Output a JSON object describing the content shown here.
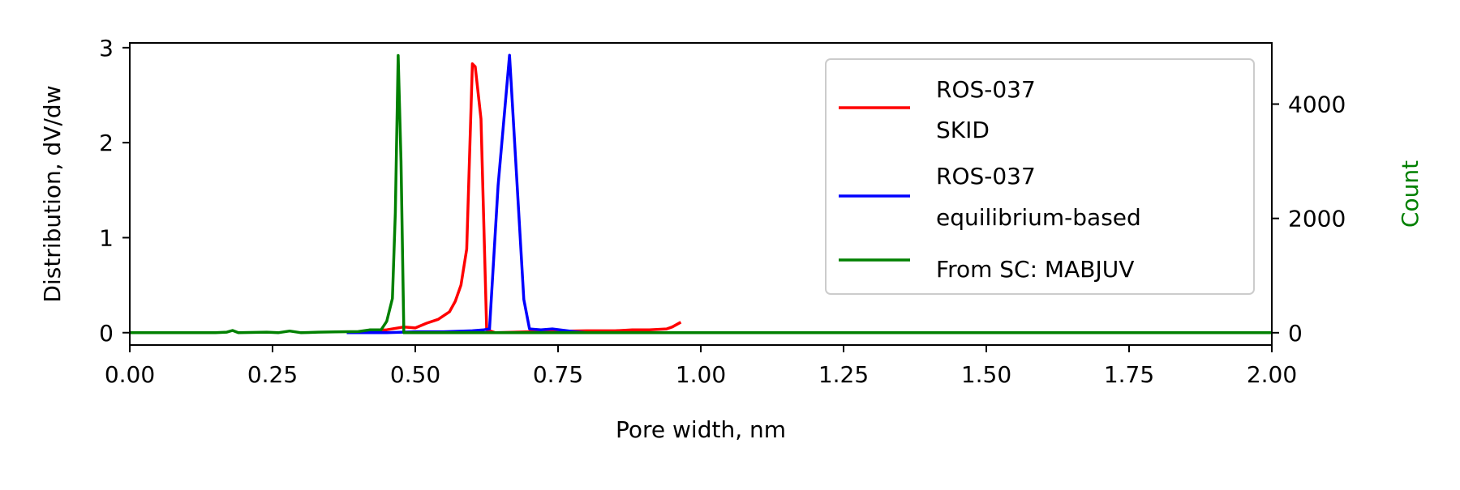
{
  "chart_data": {
    "type": "line",
    "xlabel": "Pore width, nm",
    "ylabel": "Distribution, dV/dw",
    "y2label": "Count",
    "xlim": [
      0,
      2
    ],
    "ylim": [
      -0.13,
      3.05
    ],
    "y2lim": [
      -215,
      5070
    ],
    "xticks": [
      0,
      0.25,
      0.5,
      0.75,
      1.0,
      1.25,
      1.5,
      1.75,
      2.0
    ],
    "xtick_labels": [
      "0.00",
      "0.25",
      "0.50",
      "0.75",
      "1.00",
      "1.25",
      "1.50",
      "1.75",
      "2.00"
    ],
    "yticks": [
      0,
      1,
      2,
      3
    ],
    "ytick_labels": [
      "0",
      "1",
      "2",
      "3"
    ],
    "y2ticks": [
      0,
      2000,
      4000
    ],
    "y2tick_labels": [
      "0",
      "2000",
      "4000"
    ],
    "legend_position": "top-right",
    "colors": {
      "red": "#ff0000",
      "blue": "#0000ff",
      "green": "#008000",
      "count_label": "#008000"
    },
    "series": [
      {
        "name": "ROS-037\nSKID",
        "axis": "left",
        "color": "#ff0000",
        "x": [
          0.4,
          0.45,
          0.48,
          0.5,
          0.52,
          0.54,
          0.56,
          0.57,
          0.58,
          0.59,
          0.6,
          0.605,
          0.615,
          0.625,
          0.64,
          0.7,
          0.8,
          0.85,
          0.88,
          0.91,
          0.94,
          0.95,
          0.965
        ],
        "y": [
          0.01,
          0.03,
          0.06,
          0.05,
          0.1,
          0.14,
          0.22,
          0.33,
          0.5,
          0.88,
          2.83,
          2.8,
          2.25,
          0.03,
          0.0,
          0.01,
          0.02,
          0.02,
          0.03,
          0.03,
          0.04,
          0.06,
          0.11
        ]
      },
      {
        "name": "ROS-037\nequilibrium-based",
        "axis": "left",
        "color": "#0000ff",
        "x": [
          0.38,
          0.45,
          0.5,
          0.55,
          0.6,
          0.62,
          0.63,
          0.645,
          0.665,
          0.69,
          0.7,
          0.72,
          0.74,
          0.78,
          0.8
        ],
        "y": [
          0.0,
          0.0,
          0.01,
          0.01,
          0.02,
          0.03,
          0.04,
          1.55,
          2.92,
          0.35,
          0.04,
          0.03,
          0.04,
          0.01,
          0.0
        ],
        "line_end_x": 0.8
      },
      {
        "name": "From SC: MABJUV",
        "axis": "right",
        "color": "#008000",
        "x": [
          0.0,
          0.15,
          0.17,
          0.18,
          0.19,
          0.24,
          0.26,
          0.28,
          0.3,
          0.33,
          0.36,
          0.4,
          0.42,
          0.44,
          0.45,
          0.46,
          0.465,
          0.47,
          0.475,
          0.48,
          0.49,
          2.0
        ],
        "y": [
          0,
          0,
          10,
          40,
          0,
          10,
          0,
          30,
          0,
          10,
          15,
          20,
          50,
          50,
          200,
          600,
          2100,
          4850,
          3000,
          0,
          0,
          0
        ]
      }
    ]
  }
}
